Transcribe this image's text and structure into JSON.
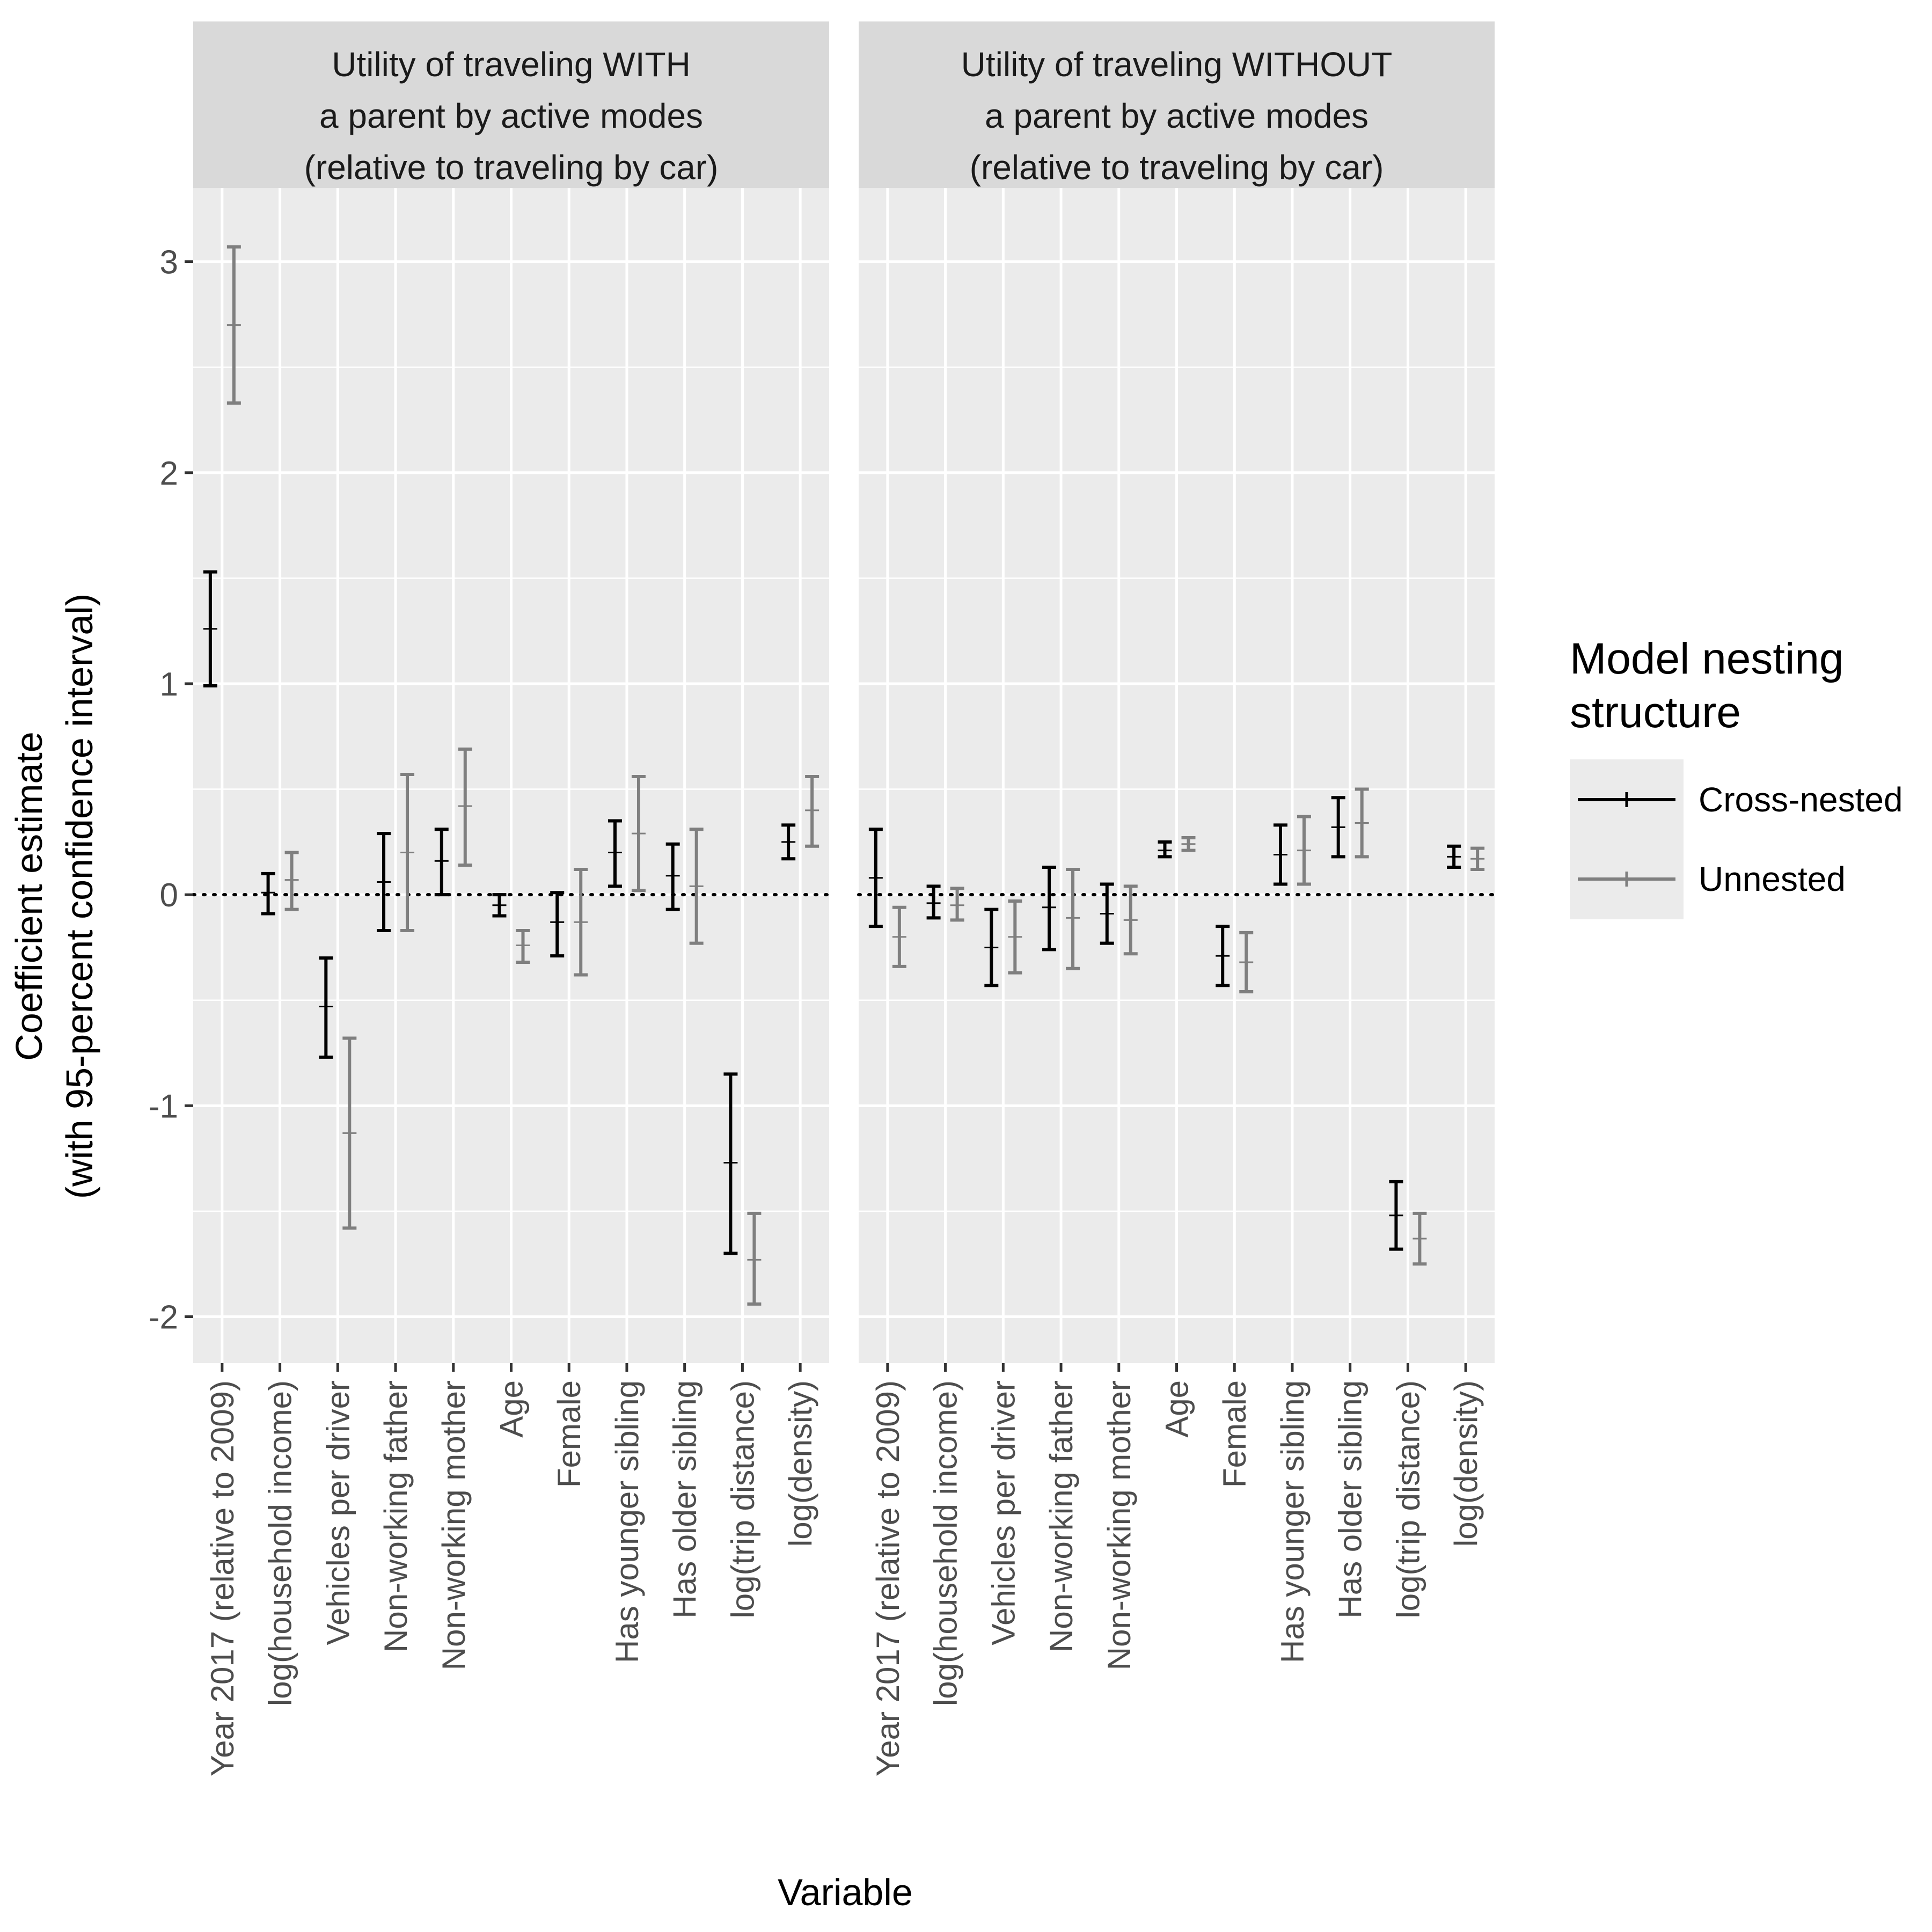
{
  "chart_data": {
    "type": "errorbar",
    "xlabel": "Variable",
    "ylabel": [
      "Coefficient estimate",
      "(with 95-percent confidence interval)"
    ],
    "ylim": [
      -2.22,
      3.35
    ],
    "yticks": [
      3,
      2,
      1,
      0,
      -1,
      -2
    ],
    "ytick_labels": [
      "3",
      "2",
      "1",
      "0",
      "-1",
      "-2"
    ],
    "reference_line": {
      "y": 0,
      "style": "dotted"
    },
    "grid": true,
    "categories": [
      "Year 2017 (relative to 2009)",
      "log(household income)",
      "Vehicles per driver",
      "Non-working father",
      "Non-working mother",
      "Age",
      "Female",
      "Has younger sibling",
      "Has older sibling",
      "log(trip distance)",
      "log(density)"
    ],
    "legend": {
      "title": [
        "Model nesting",
        "structure"
      ],
      "position": "right",
      "entries": [
        {
          "name": "Cross-nested",
          "color": "#000000"
        },
        {
          "name": "Unnested",
          "color": "#7f7f7f"
        }
      ]
    },
    "panels": [
      {
        "title": [
          "Utility of traveling WITH",
          "a parent by active modes",
          "(relative to traveling by car)"
        ],
        "series": [
          {
            "name": "Cross-nested",
            "color": "#000000",
            "estimate": [
              1.26,
              0.01,
              -0.53,
              0.06,
              0.16,
              -0.05,
              -0.13,
              0.2,
              0.09,
              -1.27,
              0.25
            ],
            "lower": [
              0.99,
              -0.09,
              -0.77,
              -0.17,
              0.0,
              -0.1,
              -0.29,
              0.04,
              -0.07,
              -1.7,
              0.17
            ],
            "upper": [
              1.53,
              0.1,
              -0.3,
              0.29,
              0.31,
              0.0,
              0.01,
              0.35,
              0.24,
              -0.85,
              0.33
            ]
          },
          {
            "name": "Unnested",
            "color": "#7f7f7f",
            "estimate": [
              2.7,
              0.07,
              -1.13,
              0.2,
              0.42,
              -0.24,
              -0.13,
              0.29,
              0.04,
              -1.73,
              0.4
            ],
            "lower": [
              2.33,
              -0.07,
              -1.58,
              -0.17,
              0.14,
              -0.32,
              -0.38,
              0.02,
              -0.23,
              -1.94,
              0.23
            ],
            "upper": [
              3.07,
              0.2,
              -0.68,
              0.57,
              0.69,
              -0.17,
              0.12,
              0.56,
              0.31,
              -1.51,
              0.56
            ]
          }
        ]
      },
      {
        "title": [
          "Utility of traveling WITHOUT",
          "a parent by active modes",
          "(relative to traveling by car)"
        ],
        "series": [
          {
            "name": "Cross-nested",
            "color": "#000000",
            "estimate": [
              0.08,
              -0.04,
              -0.25,
              -0.06,
              -0.09,
              0.21,
              -0.29,
              0.19,
              0.32,
              -1.52,
              0.18
            ],
            "lower": [
              -0.15,
              -0.11,
              -0.43,
              -0.26,
              -0.23,
              0.18,
              -0.43,
              0.05,
              0.18,
              -1.68,
              0.13
            ],
            "upper": [
              0.31,
              0.04,
              -0.07,
              0.13,
              0.05,
              0.25,
              -0.15,
              0.33,
              0.46,
              -1.36,
              0.23
            ]
          },
          {
            "name": "Unnested",
            "color": "#7f7f7f",
            "estimate": [
              -0.2,
              -0.05,
              -0.2,
              -0.11,
              -0.12,
              0.24,
              -0.32,
              0.21,
              0.34,
              -1.63,
              0.17
            ],
            "lower": [
              -0.34,
              -0.12,
              -0.37,
              -0.35,
              -0.28,
              0.21,
              -0.46,
              0.05,
              0.18,
              -1.75,
              0.12
            ],
            "upper": [
              -0.06,
              0.03,
              -0.03,
              0.12,
              0.04,
              0.27,
              -0.18,
              0.37,
              0.5,
              -1.51,
              0.22
            ]
          }
        ]
      }
    ]
  }
}
